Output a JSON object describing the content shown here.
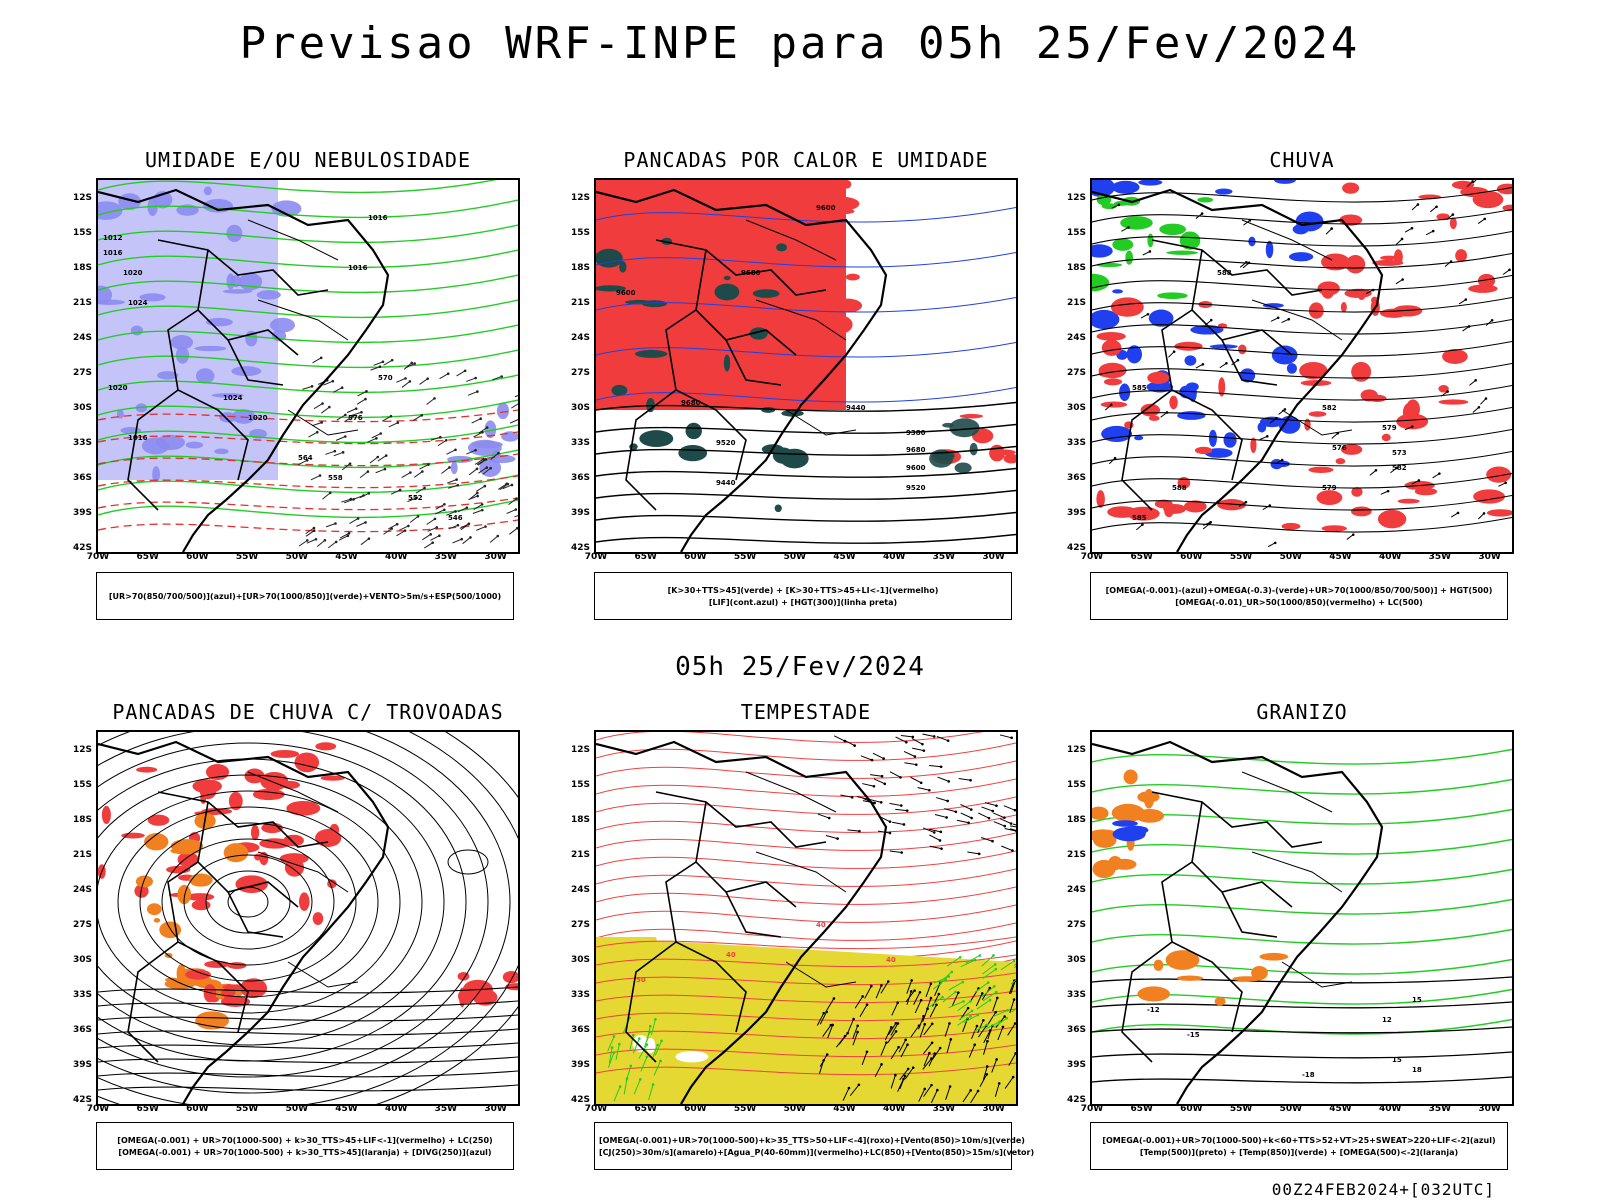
{
  "header": {
    "title": "Previsao WRF-INPE  para 05h 25/Fev/2024"
  },
  "subheader": {
    "title": "05h 25/Fev/2024"
  },
  "footer": {
    "run": "00Z24FEB2024+[032UTC]"
  },
  "axes": {
    "lat_labels": [
      "12S",
      "15S",
      "18S",
      "21S",
      "24S",
      "27S",
      "30S",
      "33S",
      "36S",
      "39S",
      "42S"
    ],
    "lon_labels": [
      "70W",
      "65W",
      "60W",
      "55W",
      "50W",
      "45W",
      "40W",
      "35W",
      "30W"
    ]
  },
  "panels": [
    {
      "title": "UMIDADE E/OU NEBULOSIDADE",
      "legend": [
        "[UR>70(850/700/500)](azul)+[UR>70(1000/850)](verde)+VENTO>5m/s+ESP(500/1000)"
      ],
      "contour_labels": [
        "1012",
        "1016",
        "1020",
        "1024",
        "1016",
        "1016",
        "1020",
        "1024",
        "1016",
        "1020",
        "576",
        "570",
        "564",
        "558",
        "552",
        "546"
      ]
    },
    {
      "title": "PANCADAS POR CALOR E UMIDADE",
      "legend": [
        "[K>30+TTS>45](verde) + [K>30+TTS>45+LI<-1](vermelho)",
        "[LIF](cont.azul) + [HGT(300)](linha preta)"
      ],
      "contour_labels": [
        "9600",
        "9680",
        "9600",
        "9680",
        "9520",
        "9440",
        "9380",
        "9680",
        "9600",
        "9520",
        "9440"
      ]
    },
    {
      "title": "CHUVA",
      "legend": [
        "[OMEGA(-0.001)-(azul)+OMEGA(-0.3)-(verde)+UR>70(1000/850/700/500)] + HGT(500)",
        "[OMEGA(-0.01)_UR>50(1000/850)(vermelho) + LC(500)"
      ],
      "contour_labels": [
        "588",
        "585",
        "582",
        "579",
        "576",
        "573",
        "588",
        "585",
        "582",
        "579"
      ]
    },
    {
      "title": "PANCADAS DE CHUVA C/ TROVOADAS",
      "legend": [
        "[OMEGA(-0.001) + UR>70(1000-500) + k>30_TTS>45+LIF<-1](vermelho) + LC(250)",
        "[OMEGA(-0.001) + UR>70(1000-500) + k>30_TTS>45](laranja) + [DIVG(250)](azul)"
      ],
      "contour_labels": []
    },
    {
      "title": "TEMPESTADE",
      "legend": [
        "[OMEGA(-0.001)+UR>70(1000-500)+k>35_TTS>50+LIF<-4](roxo)+[Vento(850)>10m/s](verde)",
        "[CJ(250)>30m/s](amarelo)+[Agua_P(40-60mm)](vermelho)+LC(850)+[Vento(850)>15m/s](vetor)"
      ],
      "contour_labels": [
        "40",
        "40",
        "50",
        "40"
      ]
    },
    {
      "title": "GRANIZO",
      "legend": [
        "[OMEGA(-0.001)+UR>70(1000-500)+k<60+TTS>52+VT>25+SWEAT>220+LIF<-2](azul)",
        "[Temp(500)](preto) + [Temp(850)](verde) + [OMEGA(500)<-2](laranja)"
      ],
      "contour_labels": [
        "-12",
        "-15",
        "-18",
        "15",
        "12",
        "15",
        "18"
      ]
    }
  ],
  "colors": {
    "blue_fill": "#8c8cf0",
    "blue_light": "#c4c4f8",
    "green": "#22cc22",
    "red": "#f03c3c",
    "orange": "#f08020",
    "teal": "#1f4a4a",
    "yellow": "#e6d832"
  }
}
